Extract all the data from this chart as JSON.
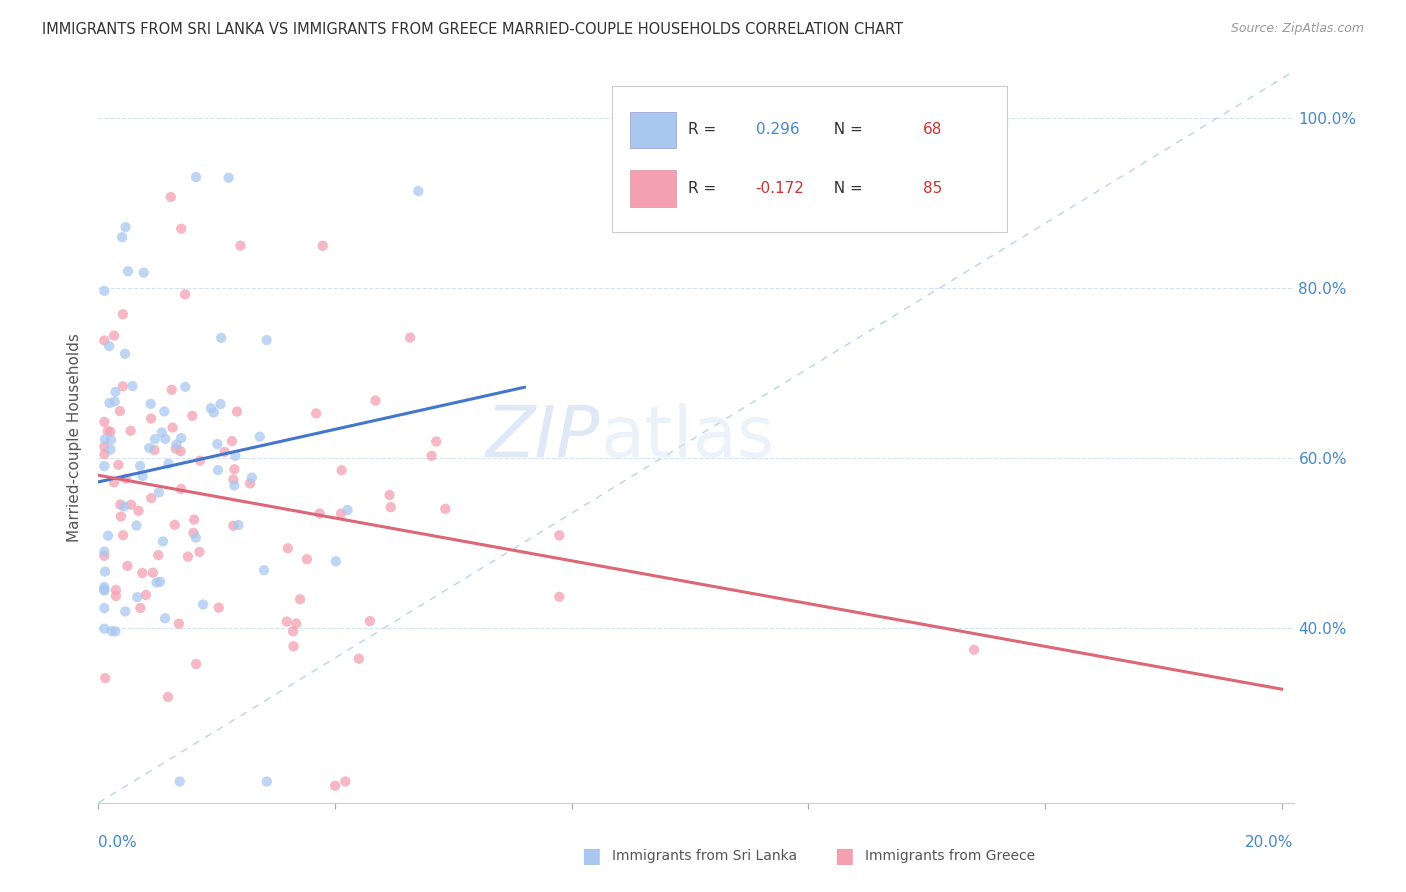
{
  "title": "IMMIGRANTS FROM SRI LANKA VS IMMIGRANTS FROM GREECE MARRIED-COUPLE HOUSEHOLDS CORRELATION CHART",
  "source": "Source: ZipAtlas.com",
  "ylabel": "Married-couple Households",
  "watermark_zip": "ZIP",
  "watermark_atlas": "atlas",
  "sri_lanka_color": "#a8c8f0",
  "greece_color": "#f4a0b0",
  "diagonal_color": "#b8d4ee",
  "trend_sri_lanka_color": "#4477cc",
  "trend_greece_color": "#dd6677",
  "background_color": "#ffffff",
  "grid_color": "#d0e4f4",
  "R_sl": 0.296,
  "N_sl": 68,
  "R_gr": -0.172,
  "N_gr": 85,
  "R_color_sl": "#4488cc",
  "N_color_sl": "#cc3333",
  "R_color_gr": "#cc3333",
  "N_color_gr": "#cc3333",
  "right_tick_color": "#4488cc",
  "xlabel_color": "#4488cc",
  "title_color": "#333333",
  "source_color": "#999999",
  "ylabel_color": "#555555"
}
